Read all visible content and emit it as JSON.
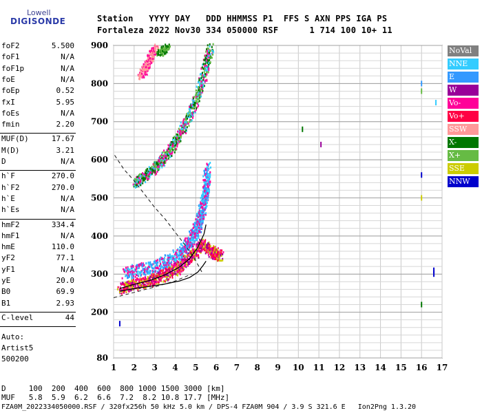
{
  "logo": {
    "line1": "Lowell",
    "line2": "DIGISONDE"
  },
  "header": {
    "line1": "Station   YYYY DAY   DDD HHMMSS P1  FFS S AXN PPS IGA PS",
    "line2": "Fortaleza 2022 Nov30 334 050000 RSF      1 714 100 10+ 11"
  },
  "params": [
    {
      "group": 1,
      "key": "foF2",
      "value": "5.500"
    },
    {
      "group": 1,
      "key": "foF1",
      "value": "N/A"
    },
    {
      "group": 1,
      "key": "foF1p",
      "value": "N/A"
    },
    {
      "group": 1,
      "key": "foE",
      "value": "N/A"
    },
    {
      "group": 1,
      "key": "foEp",
      "value": "0.52"
    },
    {
      "group": 1,
      "key": "fxI",
      "value": "5.95"
    },
    {
      "group": 1,
      "key": "foEs",
      "value": "N/A"
    },
    {
      "group": 1,
      "key": "fmin",
      "value": "2.20"
    },
    {
      "group": 2,
      "key": "MUF(D)",
      "value": "17.67"
    },
    {
      "group": 2,
      "key": "M(D)",
      "value": "3.21"
    },
    {
      "group": 2,
      "key": "D",
      "value": "N/A"
    },
    {
      "group": 3,
      "key": "h`F",
      "value": "270.0"
    },
    {
      "group": 3,
      "key": "h`F2",
      "value": "270.0"
    },
    {
      "group": 3,
      "key": "h`E",
      "value": "N/A"
    },
    {
      "group": 3,
      "key": "h`Es",
      "value": "N/A"
    },
    {
      "group": 4,
      "key": "hmF2",
      "value": "334.4"
    },
    {
      "group": 4,
      "key": "hmF1",
      "value": "N/A"
    },
    {
      "group": 4,
      "key": "hmE",
      "value": "110.0"
    },
    {
      "group": 4,
      "key": "yF2",
      "value": "77.1"
    },
    {
      "group": 4,
      "key": "yF1",
      "value": "N/A"
    },
    {
      "group": 4,
      "key": "yE",
      "value": "20.0"
    },
    {
      "group": 4,
      "key": "B0",
      "value": "69.9"
    },
    {
      "group": 4,
      "key": "B1",
      "value": "2.93"
    },
    {
      "group": 5,
      "key": "C-level",
      "value": "44"
    }
  ],
  "notes": [
    "Auto:",
    "Artist5",
    "500200"
  ],
  "footer": {
    "line1": "D     100  200  400  600  800 1000 1500 3000 [km]",
    "line2": "MUF   5.8  5.9  6.2  6.6  7.2  8.2 10.8 17.7 [MHz]",
    "line3": "FZA0M_2022334050000.RSF / 320fx256h 50 kHz 5.0 km / DPS-4 FZA0M 904 / 3.9 S 321.6 E   Ion2Png 1.3.20"
  },
  "legend": [
    {
      "label": "NoVal",
      "color": "#808080",
      "text": "#ffffff"
    },
    {
      "label": "NNE",
      "color": "#33ccff",
      "text": "#ffffff"
    },
    {
      "label": "E",
      "color": "#3399ff",
      "text": "#ffffff"
    },
    {
      "label": "W",
      "color": "#990099",
      "text": "#ffffff"
    },
    {
      "label": "Vo-",
      "color": "#ff0099",
      "text": "#ffffff"
    },
    {
      "label": "Vo+",
      "color": "#ff0044",
      "text": "#ffffff"
    },
    {
      "label": "SSW",
      "color": "#ff9999",
      "text": "#ffffff"
    },
    {
      "label": "X-",
      "color": "#007700",
      "text": "#ffffff"
    },
    {
      "label": "X+",
      "color": "#66bb44",
      "text": "#ffffff"
    },
    {
      "label": "SSE",
      "color": "#cccc00",
      "text": "#ffffff"
    },
    {
      "label": "NNW",
      "color": "#0000cc",
      "text": "#ffffff"
    }
  ],
  "chart_data": {
    "type": "scatter",
    "xlim": [
      1,
      17
    ],
    "ylim": [
      80,
      900
    ],
    "xticks": [
      "1",
      "2",
      "3",
      "4",
      "5",
      "6",
      "7",
      "8",
      "9",
      "10",
      "11",
      "12",
      "13",
      "14",
      "15",
      "16",
      "17"
    ],
    "yticks": [
      {
        "value": 80,
        "label": "80"
      },
      {
        "value": 200,
        "label": "200"
      },
      {
        "value": 300,
        "label": "300"
      },
      {
        "value": 400,
        "label": "400"
      },
      {
        "value": 500,
        "label": "500"
      },
      {
        "value": 600,
        "label": "600"
      },
      {
        "value": 700,
        "label": "700"
      },
      {
        "value": 800,
        "label": "800"
      },
      {
        "value": 900,
        "label": "900"
      }
    ],
    "grid": true,
    "profile_curve": [
      [
        1.3,
        255
      ],
      [
        2,
        262
      ],
      [
        2.8,
        268
      ],
      [
        3.5,
        274
      ],
      [
        4.2,
        282
      ],
      [
        4.7,
        291
      ],
      [
        5.1,
        305
      ],
      [
        5.35,
        322
      ],
      [
        5.5,
        334
      ]
    ],
    "virtual_height_curve": [
      [
        1.3,
        262
      ],
      [
        2,
        273
      ],
      [
        2.8,
        284
      ],
      [
        3.5,
        298
      ],
      [
        4.2,
        318
      ],
      [
        4.7,
        340
      ],
      [
        5.1,
        370
      ],
      [
        5.4,
        405
      ],
      [
        5.5,
        430
      ]
    ],
    "muf_curve": [
      [
        1.05,
        612
      ],
      [
        1.5,
        575
      ],
      [
        2,
        545
      ],
      [
        2.5,
        510
      ],
      [
        3,
        475
      ],
      [
        3.5,
        445
      ],
      [
        4,
        410
      ],
      [
        4.5,
        375
      ],
      [
        5,
        335
      ],
      [
        5.3,
        305
      ]
    ],
    "low_dash": [
      [
        1,
        238
      ],
      [
        2,
        252
      ],
      [
        3,
        266
      ],
      [
        4,
        282
      ],
      [
        4.8,
        300
      ]
    ],
    "traces": [
      {
        "name": "o1",
        "points": [
          [
            1.5,
            305
          ],
          [
            2.5,
            315
          ],
          [
            3.5,
            330
          ],
          [
            4.3,
            360
          ],
          [
            4.8,
            395
          ],
          [
            5.1,
            430
          ],
          [
            5.3,
            470
          ],
          [
            5.45,
            520
          ],
          [
            5.55,
            580
          ]
        ],
        "spread": 12,
        "colors": [
          "#3399ff",
          "#33ccff",
          "#ff0099"
        ]
      },
      {
        "name": "x1",
        "points": [
          [
            1.3,
            265
          ],
          [
            2,
            275
          ],
          [
            2.8,
            285
          ],
          [
            3.5,
            300
          ],
          [
            4.2,
            320
          ],
          [
            4.8,
            350
          ],
          [
            5.3,
            380
          ],
          [
            5.8,
            360
          ],
          [
            6.2,
            350
          ]
        ],
        "spread": 10,
        "colors": [
          "#ff0044",
          "#ff0099",
          "#990099",
          "#cccc00"
        ]
      },
      {
        "name": "o2",
        "points": [
          [
            2,
            540
          ],
          [
            2.5,
            560
          ],
          [
            3,
            580
          ],
          [
            3.5,
            610
          ],
          [
            4,
            650
          ],
          [
            4.5,
            700
          ],
          [
            5,
            760
          ],
          [
            5.4,
            830
          ],
          [
            5.7,
            900
          ]
        ],
        "spread": 8,
        "colors": [
          "#007700",
          "#66bb44",
          "#ff0099",
          "#33ccff"
        ]
      },
      {
        "name": "o3",
        "points": [
          [
            2.3,
            820
          ],
          [
            2.7,
            860
          ],
          [
            3,
            900
          ]
        ],
        "spread": 6,
        "colors": [
          "#ff0099",
          "#ff9999"
        ]
      },
      {
        "name": "x3",
        "points": [
          [
            3.2,
            880
          ],
          [
            3.6,
            900
          ]
        ],
        "spread": 5,
        "colors": [
          "#66bb44",
          "#007700"
        ]
      }
    ],
    "isolated": [
      {
        "x": 16.0,
        "y": 800,
        "color": "#3399ff"
      },
      {
        "x": 16.0,
        "y": 780,
        "color": "#66bb44"
      },
      {
        "x": 16.0,
        "y": 560,
        "color": "#0000cc"
      },
      {
        "x": 16.0,
        "y": 500,
        "color": "#cccc00"
      },
      {
        "x": 16.0,
        "y": 220,
        "color": "#007700"
      },
      {
        "x": 16.6,
        "y": 300,
        "color": "#0000cc"
      },
      {
        "x": 16.6,
        "y": 310,
        "color": "#0000cc"
      },
      {
        "x": 10.2,
        "y": 680,
        "color": "#007700"
      },
      {
        "x": 11.1,
        "y": 640,
        "color": "#990099"
      },
      {
        "x": 1.3,
        "y": 170,
        "color": "#0000cc"
      },
      {
        "x": 16.7,
        "y": 750,
        "color": "#33ccff"
      }
    ]
  }
}
